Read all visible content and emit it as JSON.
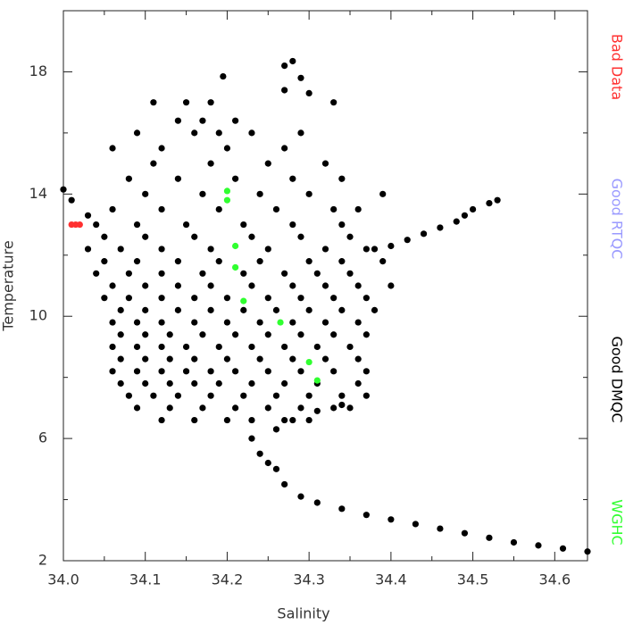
{
  "chart_data": {
    "type": "scatter",
    "x_label": "Salinity",
    "y_label": "Temperature",
    "xlim": [
      34.0,
      34.64
    ],
    "ylim": [
      2,
      20
    ],
    "xticks": [
      {
        "value": 34.0,
        "label": "34.0"
      },
      34.1,
      34.2,
      34.3,
      34.4,
      34.5,
      34.6
    ],
    "xminor_ticks": [
      34.05,
      34.15,
      34.25,
      34.35,
      34.45,
      34.55
    ],
    "yticks": [
      2,
      6,
      10,
      14,
      18
    ],
    "yminor_ticks": [
      4,
      8,
      12,
      16,
      20
    ],
    "series": [
      {
        "name": "Bad Data",
        "color": "#ff3030",
        "x": [
          34.01,
          34.015,
          34.02
        ],
        "y": [
          13,
          13,
          13
        ]
      },
      {
        "name": "Good RTQC",
        "color": "#9a9aff",
        "x": [],
        "y": []
      },
      {
        "name": "Good DMQC",
        "color": "#000000",
        "x": [
          34.12,
          34.16,
          34.2,
          34.23,
          34.27,
          34.3,
          34.09,
          34.13,
          34.17,
          34.21,
          34.25,
          34.29,
          34.33,
          34.08,
          34.11,
          34.14,
          34.18,
          34.22,
          34.26,
          34.3,
          34.34,
          34.07,
          34.1,
          34.13,
          34.16,
          34.19,
          34.23,
          34.27,
          34.31,
          34.36,
          34.06,
          34.09,
          34.12,
          34.15,
          34.18,
          34.21,
          34.25,
          34.29,
          34.33,
          34.37,
          34.07,
          34.1,
          34.13,
          34.16,
          34.2,
          34.24,
          34.28,
          34.32,
          34.36,
          34.06,
          34.09,
          34.12,
          34.15,
          34.19,
          34.23,
          34.27,
          34.31,
          34.35,
          34.07,
          34.1,
          34.13,
          34.17,
          34.21,
          34.25,
          34.29,
          34.33,
          34.37,
          34.06,
          34.09,
          34.12,
          34.16,
          34.2,
          34.24,
          34.28,
          34.32,
          34.36,
          34.07,
          34.1,
          34.14,
          34.18,
          34.22,
          34.26,
          34.3,
          34.34,
          34.38,
          34.05,
          34.08,
          34.12,
          34.16,
          34.2,
          34.25,
          34.29,
          34.33,
          34.37,
          34.06,
          34.1,
          34.14,
          34.18,
          34.23,
          34.28,
          34.32,
          34.36,
          34.4,
          34.04,
          34.08,
          34.12,
          34.17,
          34.22,
          34.27,
          34.31,
          34.35,
          34.05,
          34.09,
          34.14,
          34.19,
          34.24,
          34.3,
          34.34,
          34.39,
          34.03,
          34.07,
          34.12,
          34.18,
          34.25,
          34.32,
          34.37,
          34.05,
          34.1,
          34.16,
          34.23,
          34.29,
          34.35,
          34.04,
          34.09,
          34.15,
          34.22,
          34.28,
          34.34,
          34.06,
          34.12,
          34.19,
          34.26,
          34.33,
          34.36,
          34.1,
          34.17,
          34.24,
          34.3,
          34.39,
          34.08,
          34.14,
          34.21,
          34.28,
          34.34,
          34.11,
          34.18,
          34.25,
          34.32,
          34.06,
          34.12,
          34.2,
          34.27,
          34.09,
          34.16,
          34.19,
          34.23,
          34.29,
          34.14,
          34.17,
          34.21,
          34.11,
          34.15,
          34.18,
          34.33,
          34.27,
          34.28,
          34.29,
          34.27,
          34.3,
          34.195,
          34.38,
          34.4,
          34.42,
          34.44,
          34.46,
          34.48,
          34.49,
          34.5,
          34.52,
          34.53,
          34.0,
          34.01,
          34.03,
          34.27,
          34.29,
          34.31,
          34.34,
          34.37,
          34.4,
          34.43,
          34.46,
          34.49,
          34.52,
          34.55,
          34.58,
          34.61,
          34.64,
          34.24,
          34.25,
          34.26,
          34.23,
          34.26,
          34.28,
          34.31,
          34.34,
          34.37,
          34.35
        ],
        "y": [
          6.6,
          6.6,
          6.6,
          6.6,
          6.6,
          6.6,
          7.0,
          7.0,
          7.0,
          7.0,
          7.0,
          7.0,
          7.0,
          7.4,
          7.4,
          7.4,
          7.4,
          7.4,
          7.4,
          7.4,
          7.4,
          7.8,
          7.8,
          7.8,
          7.8,
          7.8,
          7.8,
          7.8,
          7.8,
          7.8,
          8.2,
          8.2,
          8.2,
          8.2,
          8.2,
          8.2,
          8.2,
          8.2,
          8.2,
          8.2,
          8.6,
          8.6,
          8.6,
          8.6,
          8.6,
          8.6,
          8.6,
          8.6,
          8.6,
          9.0,
          9.0,
          9.0,
          9.0,
          9.0,
          9.0,
          9.0,
          9.0,
          9.0,
          9.4,
          9.4,
          9.4,
          9.4,
          9.4,
          9.4,
          9.4,
          9.4,
          9.4,
          9.8,
          9.8,
          9.8,
          9.8,
          9.8,
          9.8,
          9.8,
          9.8,
          9.8,
          10.2,
          10.2,
          10.2,
          10.2,
          10.2,
          10.2,
          10.2,
          10.2,
          10.2,
          10.6,
          10.6,
          10.6,
          10.6,
          10.6,
          10.6,
          10.6,
          10.6,
          10.6,
          11.0,
          11.0,
          11.0,
          11.0,
          11.0,
          11.0,
          11.0,
          11.0,
          11.0,
          11.4,
          11.4,
          11.4,
          11.4,
          11.4,
          11.4,
          11.4,
          11.4,
          11.8,
          11.8,
          11.8,
          11.8,
          11.8,
          11.8,
          11.8,
          11.8,
          12.2,
          12.2,
          12.2,
          12.2,
          12.2,
          12.2,
          12.2,
          12.6,
          12.6,
          12.6,
          12.6,
          12.6,
          12.6,
          13.0,
          13.0,
          13.0,
          13.0,
          13.0,
          13.0,
          13.5,
          13.5,
          13.5,
          13.5,
          13.5,
          13.5,
          14.0,
          14.0,
          14.0,
          14.0,
          14.0,
          14.5,
          14.5,
          14.5,
          14.5,
          14.5,
          15.0,
          15.0,
          15.0,
          15.0,
          15.5,
          15.5,
          15.5,
          15.5,
          16.0,
          16.0,
          16.0,
          16.0,
          16.0,
          16.4,
          16.4,
          16.4,
          17.0,
          17.0,
          17.0,
          17.0,
          18.2,
          18.35,
          17.8,
          17.4,
          17.3,
          17.85,
          12.2,
          12.3,
          12.5,
          12.7,
          12.9,
          13.1,
          13.3,
          13.5,
          13.7,
          13.8,
          14.15,
          13.8,
          13.3,
          4.5,
          4.1,
          3.9,
          3.7,
          3.5,
          3.35,
          3.2,
          3.05,
          2.9,
          2.75,
          2.6,
          2.5,
          2.4,
          2.3,
          5.5,
          5.2,
          5.0,
          6.0,
          6.3,
          6.6,
          6.9,
          7.1,
          7.4,
          7.0
        ]
      },
      {
        "name": "WGHC",
        "color": "#30ff30",
        "x": [
          34.2,
          34.2,
          34.21,
          34.21,
          34.22,
          34.265,
          34.31,
          34.3
        ],
        "y": [
          14.1,
          13.8,
          12.3,
          11.6,
          10.5,
          9.8,
          7.9,
          8.5
        ]
      }
    ]
  }
}
